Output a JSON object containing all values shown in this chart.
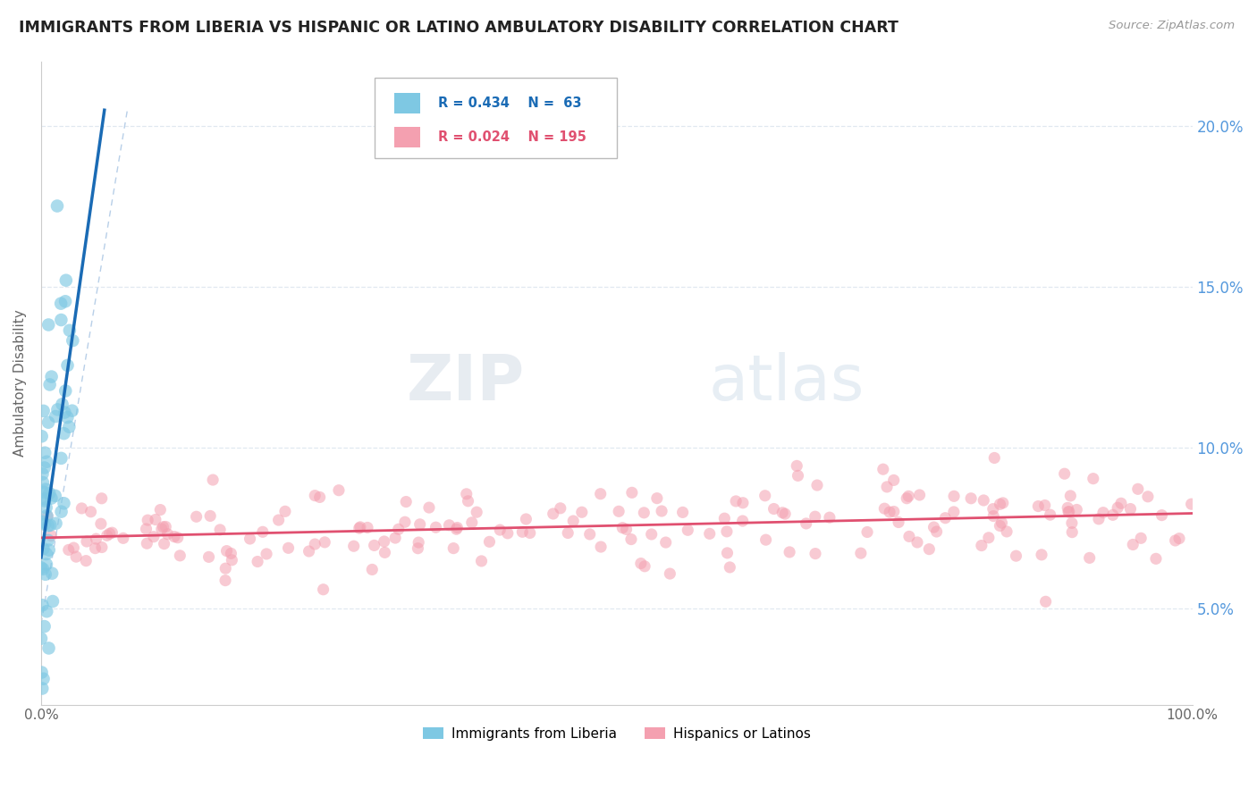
{
  "title": "IMMIGRANTS FROM LIBERIA VS HISPANIC OR LATINO AMBULATORY DISABILITY CORRELATION CHART",
  "source": "Source: ZipAtlas.com",
  "ylabel": "Ambulatory Disability",
  "xlim": [
    0,
    100
  ],
  "ylim": [
    2,
    22
  ],
  "yticks_right": [
    5.0,
    10.0,
    15.0,
    20.0
  ],
  "ytick_labels_right": [
    "5.0%",
    "10.0%",
    "15.0%",
    "20.0%"
  ],
  "legend_R1": "R = 0.434",
  "legend_N1": "N =  63",
  "legend_R2": "R = 0.024",
  "legend_N2": "N = 195",
  "color_blue": "#7ec8e3",
  "color_pink": "#f4a0b0",
  "color_blue_line": "#1a6bb5",
  "color_pink_line": "#e05070",
  "color_diag": "#b8cfe8",
  "watermark_zip": "ZIP",
  "watermark_atlas": "atlas",
  "background_color": "#ffffff",
  "grid_color": "#e0e8f0",
  "title_color": "#222222",
  "source_color": "#999999",
  "right_ytick_color": "#5599dd",
  "seed": 7
}
